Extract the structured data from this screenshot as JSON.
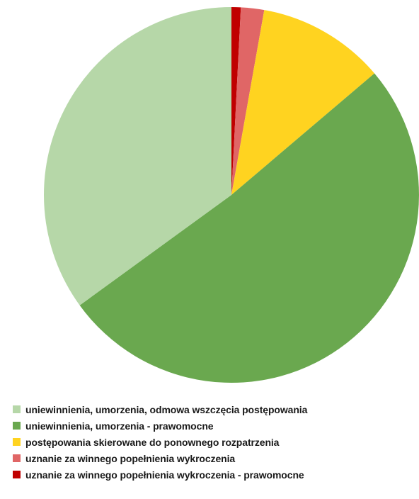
{
  "chart_data": {
    "type": "pie",
    "title": "",
    "start_angle_deg": 0,
    "direction": "clockwise",
    "legend_position": "bottom-left",
    "slices": [
      {
        "label": "uznanie za winnego popełnienia wykroczenia - prawomocne",
        "value": 0.8,
        "color": "#C00000"
      },
      {
        "label": "uznanie za winnego popełnienia wykroczenia",
        "value": 2.0,
        "color": "#E06666"
      },
      {
        "label": "postępowania skierowane do ponownego rozpatrzenia",
        "value": 11.0,
        "color": "#FFD320"
      },
      {
        "label": "uniewinnienia, umorzenia - prawomocne",
        "value": 51.2,
        "color": "#6AA84F"
      },
      {
        "label": "uniewinnienia, umorzenia, odmowa wszczęcia postępowania",
        "value": 35.0,
        "color": "#B6D7A8"
      }
    ],
    "legend": [
      {
        "label": "uniewinnienia, umorzenia, odmowa wszczęcia postępowania",
        "color": "#B6D7A8"
      },
      {
        "label": "uniewinnienia, umorzenia - prawomocne",
        "color": "#6AA84F"
      },
      {
        "label": "postępowania skierowane do ponownego rozpatrzenia",
        "color": "#FFD320"
      },
      {
        "label": "uznanie za winnego popełnienia wykroczenia",
        "color": "#E06666"
      },
      {
        "label": "uznanie za winnego popełnienia wykroczenia - prawomocne",
        "color": "#C00000"
      }
    ]
  }
}
